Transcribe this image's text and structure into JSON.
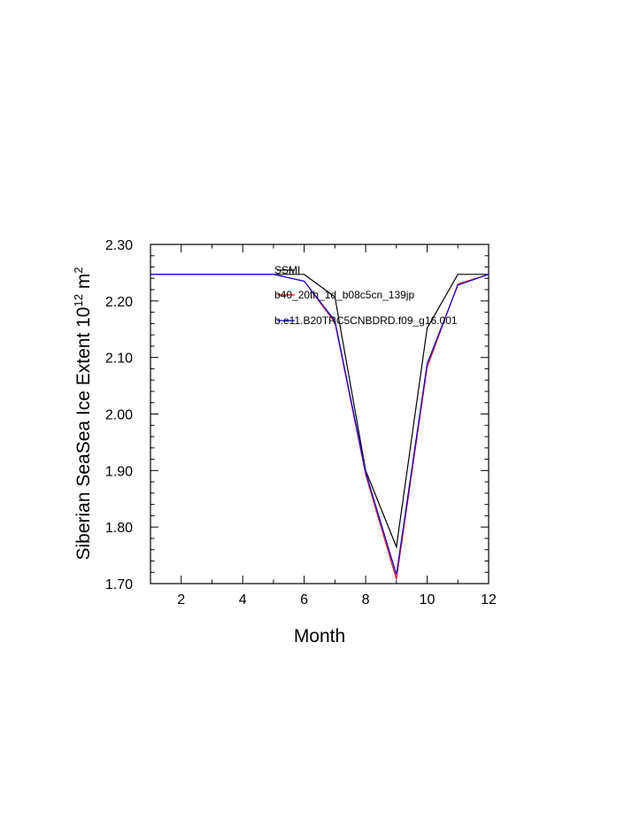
{
  "chart_data": {
    "type": "line",
    "title": "",
    "xlabel": "Month",
    "ylabel": {
      "main": "Siberian SeaSea Ice Extent 10",
      "exp1": "12",
      "unit": " m",
      "exp2": "2"
    },
    "xlim": [
      1,
      12
    ],
    "ylim": [
      1.7,
      2.3
    ],
    "xticks": [
      2,
      4,
      6,
      8,
      10,
      12
    ],
    "xtick_labels": [
      "2",
      "4",
      "6",
      "8",
      "10",
      "12"
    ],
    "yticks": [
      1.7,
      1.8,
      1.9,
      2.0,
      2.1,
      2.2,
      2.3
    ],
    "ytick_labels": [
      "1.70",
      "1.80",
      "1.90",
      "2.00",
      "2.10",
      "2.20",
      "2.30"
    ],
    "x": [
      1,
      2,
      3,
      4,
      5,
      6,
      7,
      8,
      9,
      10,
      11,
      12
    ],
    "series": [
      {
        "name": "SSMI",
        "color": "#000000",
        "values": [
          2.247,
          2.247,
          2.247,
          2.247,
          2.247,
          2.247,
          2.207,
          1.9,
          1.765,
          2.152,
          2.247,
          2.247
        ]
      },
      {
        "name": "b40_20th_1d_b08c5cn_139jp",
        "color": "#ff0000",
        "values": [
          2.247,
          2.247,
          2.247,
          2.247,
          2.247,
          2.235,
          2.162,
          1.893,
          1.708,
          2.083,
          2.23,
          2.247
        ]
      },
      {
        "name": "b.e11.B20TRC5CNBDRD.f09_g16.001",
        "color": "#0000ff",
        "values": [
          2.247,
          2.247,
          2.247,
          2.247,
          2.247,
          2.235,
          2.165,
          1.897,
          1.716,
          2.089,
          2.228,
          2.247
        ]
      }
    ],
    "grid": false,
    "legend_position": "inside-top-right"
  }
}
